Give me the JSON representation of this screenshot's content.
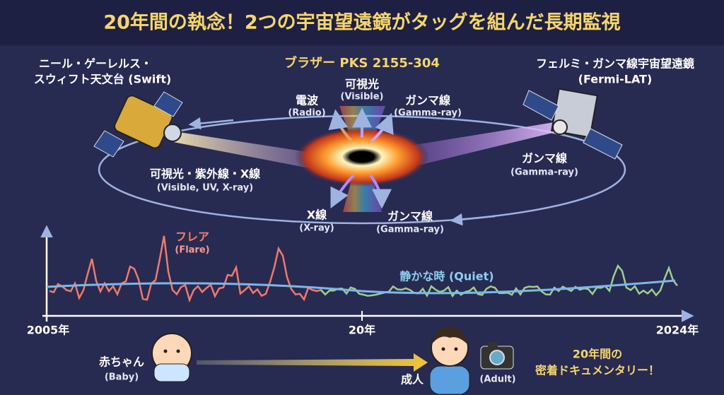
{
  "title": "20年間の執念！2つの宇宙望遠鏡がタッグを組んだ長期監視",
  "swift": {
    "line1": "ニール・ゲーレルス・",
    "line2": "スウィフト天文台 (Swift)",
    "beam": "可視光・紫外線・X線",
    "beam_en": "(Visible, UV, X-ray)"
  },
  "blazar": "ブラザー PKS 2155-304",
  "fermi": {
    "line1": "フェルミ・ガンマ線宇宙望遠鏡",
    "line2": "(Fermi-LAT)",
    "beam": "ガンマ線",
    "beam_en": "(Gamma-ray)"
  },
  "emissions": [
    {
      "label": "電波",
      "en": "(Radio)"
    },
    {
      "label": "可視光",
      "en": "(Visible)"
    },
    {
      "label": "ガンマ線",
      "en": "(Gamma-ray)"
    },
    {
      "label": "X線",
      "en": "(X-ray)"
    },
    {
      "label": "ガンマ線",
      "en": "(Gamma-ray)"
    }
  ],
  "lightcurve": {
    "flare": "フレア",
    "flare_en": "(Flare)",
    "quiet": "静かな時 (Quiet)"
  },
  "timeline": [
    "2005年",
    "20年",
    "2024年"
  ],
  "story": {
    "baby": "赤ちゃん",
    "baby_en": "(Baby)",
    "adult": "成人",
    "adult_en": "(Adult)",
    "doc1": "20年間の",
    "doc2": "密着ドキュメンタリー！"
  }
}
